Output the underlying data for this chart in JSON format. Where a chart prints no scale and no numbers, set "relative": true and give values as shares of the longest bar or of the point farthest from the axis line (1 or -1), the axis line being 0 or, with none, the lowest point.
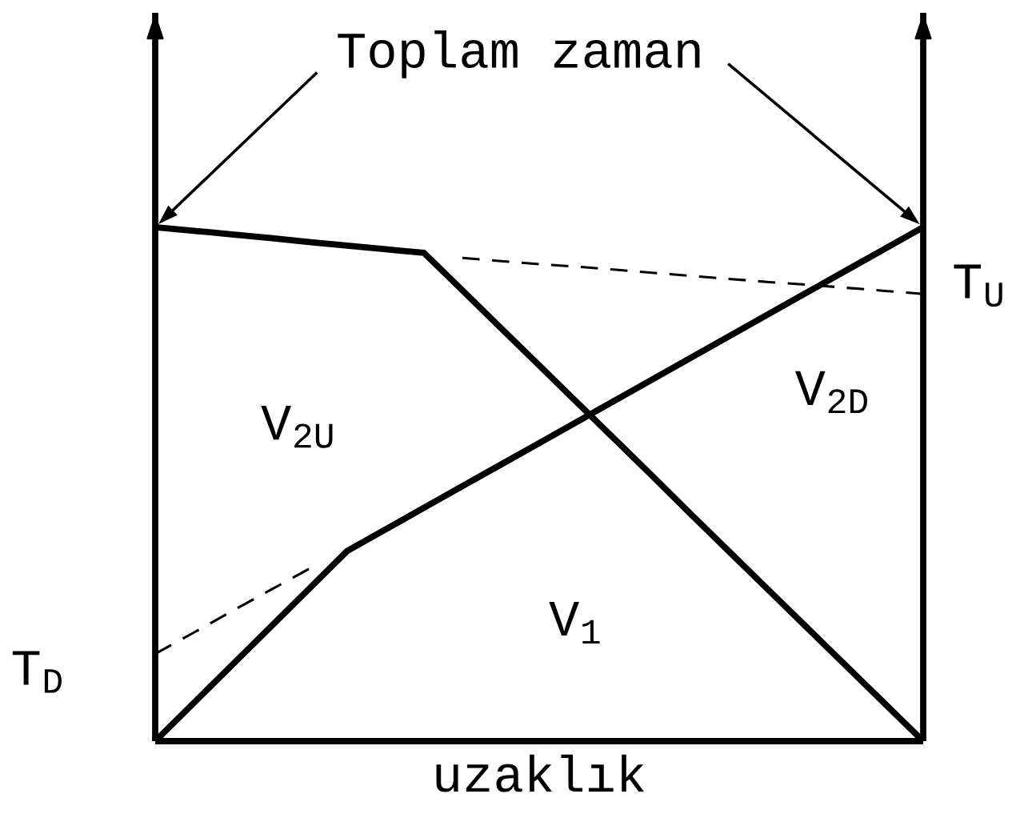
{
  "chart_data": {
    "type": "line",
    "relative": true,
    "tick_labels": false,
    "line_style": "solid",
    "xlabel": "uzaklık",
    "categories": [
      null,
      null,
      null,
      null,
      null,
      null,
      null,
      null,
      null,
      null,
      null,
      null,
      null,
      null,
      null,
      null,
      null,
      null,
      null,
      null,
      null
    ],
    "series": [
      {
        "values": [
          0,
          0.074,
          0.148,
          0.222,
          0.296,
          0.37,
          0.412,
          0.454,
          0.496,
          0.538,
          0.58,
          0.622,
          0.664,
          0.706,
          0.748,
          0.79,
          0.832,
          0.874,
          0.916,
          0.958,
          1
        ],
        "color": "#000000"
      },
      {
        "values": [
          1,
          0.993,
          0.986,
          0.979,
          0.971,
          0.964,
          0.957,
          0.95,
          0.877,
          0.804,
          0.731,
          0.658,
          0.585,
          0.512,
          0.438,
          0.365,
          0.292,
          0.219,
          0.146,
          0.073,
          0
        ],
        "color": "#000000"
      },
      {
        "name": "T$_{D}$",
        "values": [
          0.17,
          0.211,
          0.253,
          0.294,
          0.335,
          null,
          null,
          null,
          null,
          null,
          null,
          null,
          null,
          null,
          null,
          null,
          null,
          null,
          null,
          null,
          null
        ],
        "color": "#000000",
        "line_style": "dashed"
      },
      {
        "name": "T$_{U}$",
        "values": [
          null,
          null,
          null,
          null,
          null,
          null,
          null,
          null,
          0.94,
          0.934,
          0.928,
          0.923,
          0.917,
          0.911,
          0.905,
          0.899,
          0.893,
          0.888,
          0.882,
          0.876,
          0.87
        ],
        "color": "#000000",
        "line_style": "dashed"
      }
    ],
    "annotations": [
      "Toplam zaman",
      "V$_{2U}$",
      "V$_{2D}$",
      "V$_{1}$"
    ]
  }
}
